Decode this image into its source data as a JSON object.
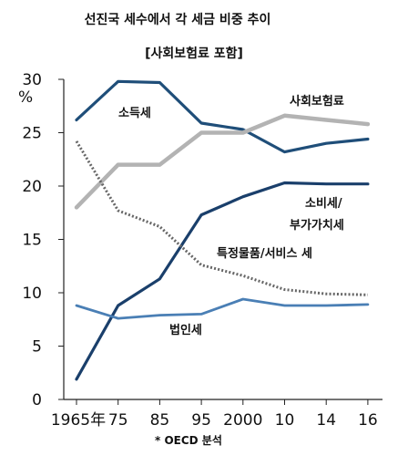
{
  "chart_data": {
    "type": "line",
    "title": "선진국 세수에서 각 세금 비중 추이",
    "subtitle": "[사회보험료 포함]",
    "y_unit": "%",
    "source": "* OECD 분석",
    "categories": [
      "1965年",
      "75",
      "85",
      "95",
      "2000",
      "10",
      "14",
      "16"
    ],
    "ylim": [
      0,
      30
    ],
    "yticks": [
      "0",
      "5",
      "10",
      "15",
      "20",
      "25",
      "30"
    ],
    "grid": false,
    "series": [
      {
        "name": "소득세",
        "values": [
          26.2,
          29.8,
          29.7,
          25.9,
          25.3,
          23.2,
          24.0,
          24.4
        ],
        "color": "#1f4e79",
        "style": "solid"
      },
      {
        "name": "사회보험료",
        "values": [
          18.0,
          22.0,
          22.0,
          25.0,
          25.0,
          26.6,
          26.2,
          25.8
        ],
        "color": "#b3b3b3",
        "style": "solid"
      },
      {
        "name": "소비세/부가가치세",
        "values": [
          1.9,
          8.8,
          11.3,
          17.3,
          19.0,
          20.3,
          20.2,
          20.2
        ],
        "color": "#1a3f6b",
        "style": "solid"
      },
      {
        "name": "특정물품/서비스 세",
        "values": [
          24.2,
          17.7,
          16.2,
          12.6,
          11.6,
          10.3,
          9.9,
          9.8
        ],
        "color": "#666666",
        "style": "dotted"
      },
      {
        "name": "법인세",
        "values": [
          8.8,
          7.6,
          7.9,
          8.0,
          9.4,
          8.8,
          8.8,
          8.9
        ],
        "color": "#4a7fb5",
        "style": "solid"
      }
    ],
    "series_labels": {
      "소득세": "소득세",
      "사회보험료": "사회보험료",
      "소비세": [
        "소비세/",
        "부가가치세"
      ],
      "특정물품": "특정물품/서비스 세",
      "법인세": "법인세"
    }
  }
}
